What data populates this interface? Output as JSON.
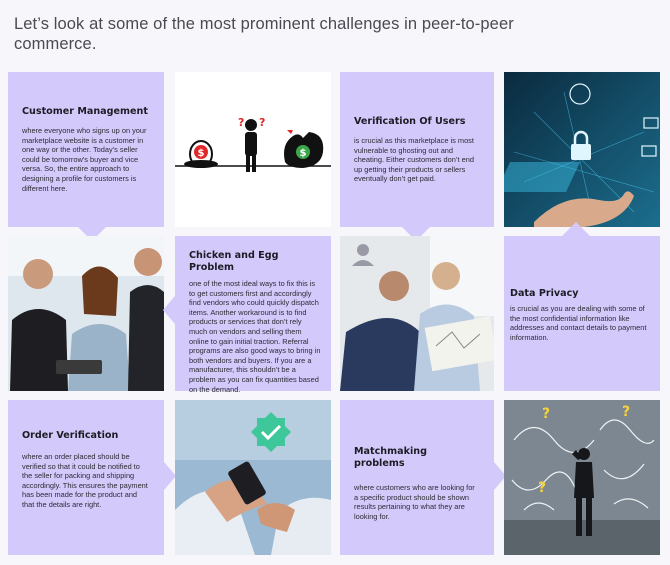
{
  "heading": "Let’s look at some of the most prominent challenges in peer-to-peer commerce.",
  "cards": {
    "customer_management": {
      "title": "Customer Management",
      "body": "where everyone who signs up on your marketplace website is a customer in one way or the other. Today’s seller could be tomorrow’s buyer and vice versa. So, the entire approach to designing a profile for customers is different here."
    },
    "verification_of_users": {
      "title": "Verification Of Users",
      "body": "is crucial as this marketplace is most vulnerable to ghosting out and cheating. Either customers don’t end up getting their products or sellers eventually don’t get paid."
    },
    "chicken_and_egg": {
      "title": "Chicken and Egg Problem",
      "body": "one of the most ideal ways to fix this is to get customers first and accordingly find vendors who could quickly dispatch items. Another workaround is to find products or services that don’t rely much on vendors and selling them online to gain initial traction. Referral programs are also good ways to bring in both vendors and buyers. If you are a manufacturer, this shouldn’t be a problem as you can fix quantities based on the demand."
    },
    "data_privacy": {
      "title": "Data Privacy",
      "body": "is crucial as you are dealing with some of the most confidential information like addresses and contact details to payment information."
    },
    "order_verification": {
      "title": "Order Verification",
      "body": "where an order placed should be verified so that it could be notified to the seller for packing and shipping accordingly. This ensures the payment has been made for the product and that the details are right."
    },
    "matchmaking": {
      "title": "Matchmaking problems",
      "body": "where customers who are looking for a specific product should be shown results pertaining to what they are looking for."
    }
  },
  "illustrations": {
    "dollar_symbol": "$",
    "question_symbol": "?"
  },
  "colors": {
    "card": "#d3c9fb",
    "page": "#f6f6fb",
    "check_badge": "#3ec79a"
  }
}
